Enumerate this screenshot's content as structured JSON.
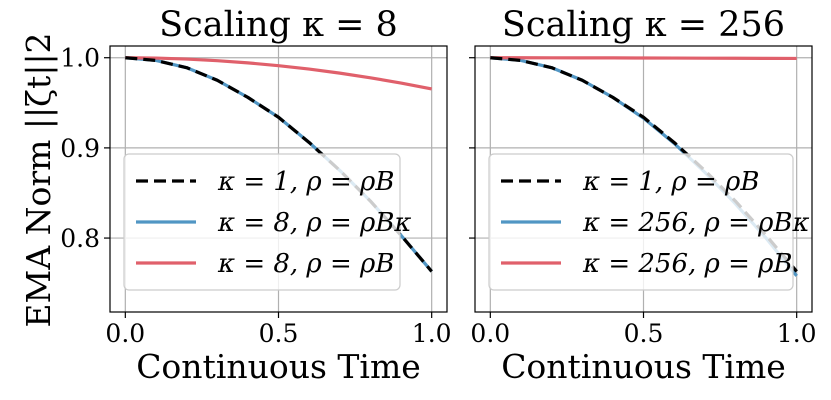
{
  "figure": {
    "ylabel": "EMA Norm ||ζt||2"
  },
  "colors": {
    "baseline": "#000000",
    "scaled_rho": "#5196c4",
    "unscaled_rho": "#e0606b"
  },
  "chart_data": [
    {
      "type": "line",
      "title": "Scaling κ = 8",
      "xlabel": "Continuous Time",
      "ylabel": "EMA Norm ||ζt||2",
      "xlim": [
        -0.05,
        1.05
      ],
      "ylim": [
        0.718,
        1.013
      ],
      "xticks": [
        "0.0",
        "0.5",
        "1.0"
      ],
      "yticks": [
        "0.8",
        "0.9",
        "1.0"
      ],
      "grid": true,
      "legend_position": "lower-left",
      "x": [
        0.0,
        0.1,
        0.2,
        0.3,
        0.4,
        0.5,
        0.6,
        0.7,
        0.8,
        0.9,
        1.0
      ],
      "series": [
        {
          "name": "κ = 8, ρ = ρBκ",
          "style": "solid",
          "color": "#5196c4",
          "values": [
            1.0,
            0.997,
            0.989,
            0.975,
            0.956,
            0.934,
            0.906,
            0.875,
            0.841,
            0.803,
            0.763
          ]
        },
        {
          "name": "κ = 8, ρ = ρB",
          "style": "solid",
          "color": "#e0606b",
          "values": [
            1.0,
            0.9996,
            0.9985,
            0.9967,
            0.9943,
            0.9912,
            0.9874,
            0.9829,
            0.9777,
            0.9719,
            0.9654
          ]
        },
        {
          "name": "κ = 1, ρ = ρB",
          "style": "dashed",
          "color": "#000000",
          "values": [
            1.0,
            0.997,
            0.989,
            0.975,
            0.956,
            0.934,
            0.906,
            0.875,
            0.841,
            0.803,
            0.763
          ]
        }
      ]
    },
    {
      "type": "line",
      "title": "Scaling κ = 256",
      "xlabel": "Continuous Time",
      "xlim": [
        -0.05,
        1.05
      ],
      "ylim": [
        0.718,
        1.013
      ],
      "xticks": [
        "0.0",
        "0.5",
        "1.0"
      ],
      "grid": true,
      "legend_position": "lower-left",
      "x": [
        0.0,
        0.1,
        0.2,
        0.3,
        0.4,
        0.5,
        0.6,
        0.7,
        0.8,
        0.9,
        1.0
      ],
      "series": [
        {
          "name": "κ = 256, ρ = ρBκ",
          "style": "solid",
          "color": "#5196c4",
          "values": [
            1.0,
            0.997,
            0.989,
            0.975,
            0.956,
            0.933,
            0.905,
            0.873,
            0.838,
            0.8,
            0.758
          ]
        },
        {
          "name": "κ = 256, ρ = ρB",
          "style": "solid",
          "color": "#e0606b",
          "values": [
            1.0,
            1.0,
            0.9999,
            0.9998,
            0.9998,
            0.9997,
            0.9996,
            0.9995,
            0.9994,
            0.9993,
            0.9992
          ]
        },
        {
          "name": "κ = 1, ρ = ρB",
          "style": "dashed",
          "color": "#000000",
          "values": [
            1.0,
            0.997,
            0.989,
            0.975,
            0.956,
            0.934,
            0.906,
            0.875,
            0.841,
            0.803,
            0.763
          ]
        }
      ]
    }
  ],
  "legend_order": [
    [
      "κ = 1, ρ = ρB",
      "κ = 8, ρ = ρBκ",
      "κ = 8, ρ = ρB"
    ],
    [
      "κ = 1, ρ = ρB",
      "κ = 256, ρ = ρBκ",
      "κ = 256, ρ = ρB"
    ]
  ]
}
